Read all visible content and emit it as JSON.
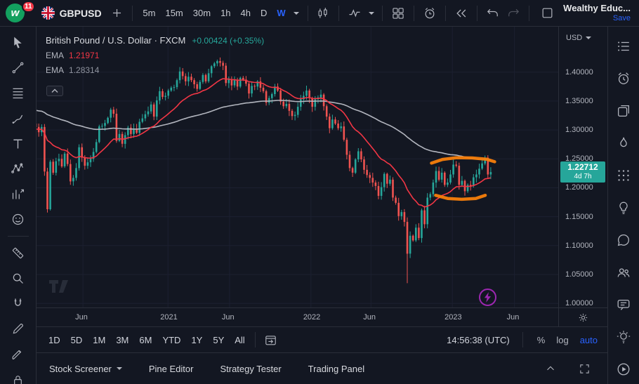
{
  "colors": {
    "background": "#131722",
    "border": "#2a2e39",
    "text_primary": "#d1d4dc",
    "text_secondary": "#b2b5be",
    "accent_blue": "#2962ff",
    "up_green": "#26a69a",
    "down_red": "#ef5350",
    "ema_red": "#f23645",
    "drawing_orange": "#f77e0b",
    "quick_trade_purple": "#9c27b0",
    "logo_green": "#13a05f",
    "badge_red": "#f23645"
  },
  "top_toolbar": {
    "logo_letter": "w",
    "badge_count": "11",
    "symbol": "GBPUSD",
    "intervals": [
      "5m",
      "15m",
      "30m",
      "1h",
      "4h",
      "D",
      "W"
    ],
    "active_interval": "W",
    "account_name": "Wealthy Educ...",
    "save_label": "Save",
    "icons": [
      "symbol-flag",
      "add-symbol",
      "interval-dropdown",
      "candlestick-style",
      "indicators",
      "layout-grid",
      "alert-clock",
      "bar-replay",
      "undo",
      "redo",
      "layout-select"
    ]
  },
  "left_toolbar": {
    "tools": [
      "cursor",
      "trend-line",
      "fib-retracement",
      "brush",
      "text",
      "xabcd-pattern",
      "forecast",
      "emoji",
      "measure",
      "zoom",
      "magnet",
      "edit",
      "draw",
      "lock"
    ]
  },
  "right_sidebar": {
    "items": [
      "watchlist",
      "alerts",
      "news",
      "hotlists",
      "screener",
      "ideas",
      "chat",
      "community",
      "messages",
      "help",
      "tutorials"
    ]
  },
  "chart": {
    "header": {
      "title": "British Pound / U.S. Dollar · FXCM",
      "change": "+0.00424 (+0.35%)",
      "indicators": [
        {
          "name": "EMA",
          "value": "1.21971"
        },
        {
          "name": "EMA",
          "value": "1.28314"
        }
      ]
    },
    "price_axis_currency": "USD"
  },
  "chart_data": {
    "type": "candlestick",
    "symbol": "GBPUSD",
    "interval": "W",
    "range_note": "weekly bars, approx Feb 2020 - Apr 2023",
    "price_top": 1.47,
    "price_bottom": 0.993,
    "y_ticks": [
      "1.40000",
      "1.35000",
      "1.30000",
      "1.25000",
      "1.20000",
      "1.15000",
      "1.10000",
      "1.05000",
      "1.00000"
    ],
    "y_tick_values": [
      1.4,
      1.35,
      1.3,
      1.25,
      1.2,
      1.15,
      1.1,
      1.05,
      1.0
    ],
    "x_ticks": [
      {
        "label": "Jun",
        "f": 0.089
      },
      {
        "label": "2021",
        "f": 0.252
      },
      {
        "label": "Jun",
        "f": 0.37
      },
      {
        "label": "2022",
        "f": 0.526
      },
      {
        "label": "Jun",
        "f": 0.641
      },
      {
        "label": "2023",
        "f": 0.797
      },
      {
        "label": "Jun",
        "f": 0.916
      }
    ],
    "weekly_closes": [
      1.311,
      1.305,
      1.296,
      1.305,
      1.228,
      1.163,
      1.245,
      1.226,
      1.246,
      1.25,
      1.237,
      1.259,
      1.241,
      1.211,
      1.217,
      1.234,
      1.27,
      1.252,
      1.238,
      1.244,
      1.25,
      1.262,
      1.279,
      1.306,
      1.307,
      1.312,
      1.321,
      1.335,
      1.328,
      1.281,
      1.293,
      1.276,
      1.291,
      1.304,
      1.293,
      1.302,
      1.295,
      1.314,
      1.32,
      1.327,
      1.332,
      1.344,
      1.323,
      1.351,
      1.367,
      1.357,
      1.359,
      1.368,
      1.373,
      1.374,
      1.386,
      1.401,
      1.393,
      1.384,
      1.392,
      1.386,
      1.379,
      1.371,
      1.383,
      1.395,
      1.384,
      1.398,
      1.41,
      1.415,
      1.419,
      1.416,
      1.411,
      1.381,
      1.388,
      1.377,
      1.387,
      1.375,
      1.39,
      1.387,
      1.38,
      1.363,
      1.376,
      1.375,
      1.384,
      1.373,
      1.367,
      1.347,
      1.355,
      1.362,
      1.375,
      1.368,
      1.349,
      1.341,
      1.345,
      1.333,
      1.324,
      1.326,
      1.34,
      1.353,
      1.359,
      1.368,
      1.355,
      1.34,
      1.353,
      1.356,
      1.361,
      1.341,
      1.323,
      1.303,
      1.318,
      1.311,
      1.303,
      1.306,
      1.283,
      1.257,
      1.234,
      1.226,
      1.249,
      1.263,
      1.249,
      1.231,
      1.222,
      1.217,
      1.209,
      1.203,
      1.186,
      1.201,
      1.224,
      1.207,
      1.214,
      1.183,
      1.174,
      1.151,
      1.158,
      1.141,
      1.086,
      1.117,
      1.109,
      1.131,
      1.113,
      1.161,
      1.137,
      1.183,
      1.189,
      1.209,
      1.229,
      1.214,
      1.226,
      1.205,
      1.209,
      1.223,
      1.24,
      1.238,
      1.205,
      1.212,
      1.194,
      1.205,
      1.203,
      1.218,
      1.223,
      1.233,
      1.242,
      1.252,
      1.223,
      1.2271
    ],
    "crash_low": 1.035,
    "last_price": "1.22712",
    "last_price_value": 1.22712,
    "countdown": "4d 7h",
    "up_color": "#26a69a",
    "down_color": "#ef5350",
    "ema_fast": {
      "period": 20,
      "start_value": 1.3,
      "color": "#f23645",
      "last_value": 1.21971
    },
    "ema_slow": {
      "period": 90,
      "start_value": 1.335,
      "color": "#b2b5be",
      "last_value": 1.28314
    },
    "annotations": [
      {
        "type": "brush",
        "color": "#f77e0b",
        "width": 4.5,
        "points": [
          [
            0.757,
            1.2425
          ],
          [
            0.778,
            1.249
          ],
          [
            0.805,
            1.252
          ],
          [
            0.835,
            1.2515
          ],
          [
            0.862,
            1.2495
          ],
          [
            0.878,
            1.245
          ]
        ]
      },
      {
        "type": "brush",
        "color": "#f77e0b",
        "width": 4.5,
        "points": [
          [
            0.765,
            1.187
          ],
          [
            0.788,
            1.1815
          ],
          [
            0.815,
            1.18
          ],
          [
            0.842,
            1.1815
          ],
          [
            0.86,
            1.187
          ]
        ]
      }
    ]
  },
  "range_toolbar": {
    "ranges": [
      "1D",
      "5D",
      "1M",
      "3M",
      "6M",
      "YTD",
      "1Y",
      "5Y",
      "All"
    ],
    "time": "14:56:38 (UTC)",
    "percent_label": "%",
    "log_label": "log",
    "auto_label": "auto"
  },
  "bottom_panel": {
    "tabs": [
      "Stock Screener",
      "Pine Editor",
      "Strategy Tester",
      "Trading Panel"
    ]
  }
}
